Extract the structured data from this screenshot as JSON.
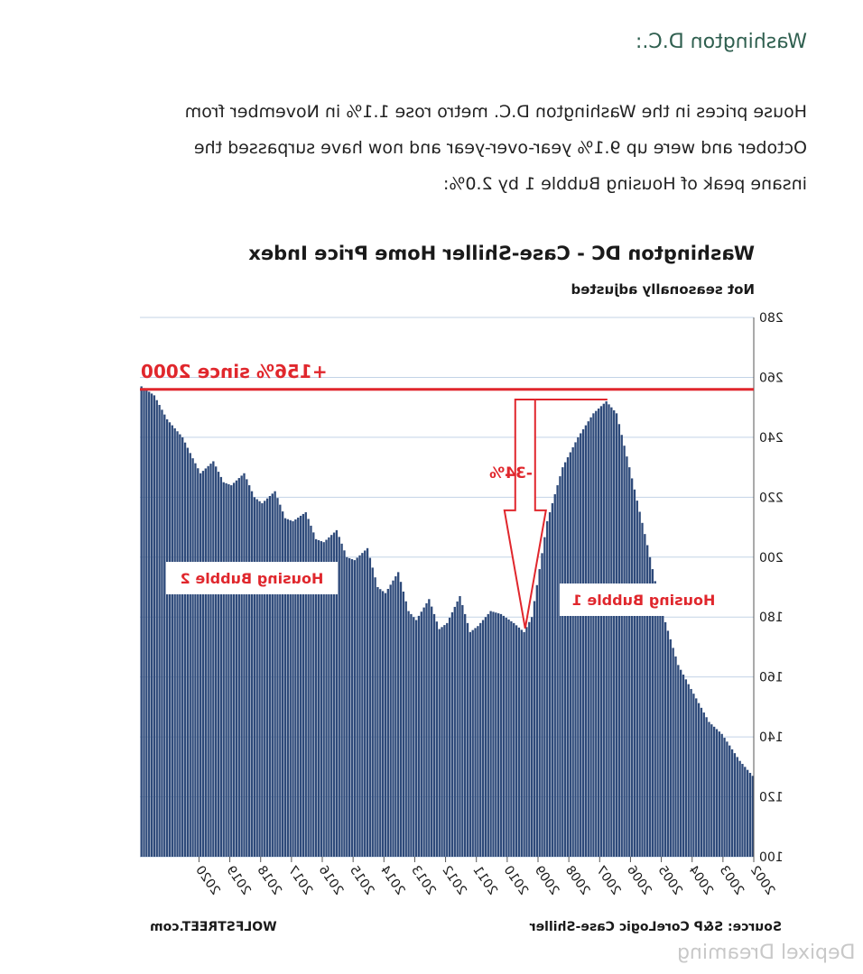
{
  "heading": "Washington D.C.:",
  "paragraph": [
    "House prices in the Washington D.C. metro rose 1.1% in November from",
    "October and were up 9.1% year-over-year and now have surpassed the",
    "insane peak of Housing Bubble 1 by 2.0%:"
  ],
  "watermark": "Depixel Dreaming",
  "colors": {
    "bars": "#2e4a7a",
    "accent": "#e0272d",
    "grid": "#c3d3e6",
    "heading": "#2f5f4f"
  },
  "chart_data": {
    "type": "bar",
    "title": "Washington DC - Case-Shiller Home Price Index",
    "subtitle": "Not seasonally adjusted",
    "source": "Source: S&P CoreLogic Case-Shiller",
    "brand": "WOLFSTREET.com",
    "ylim": [
      100,
      280
    ],
    "yticks": [
      100,
      120,
      140,
      160,
      180,
      200,
      220,
      240,
      260,
      280
    ],
    "xticks": [
      "2002",
      "2003",
      "2004",
      "2005",
      "2006",
      "2007",
      "2008",
      "2009",
      "2010",
      "2011",
      "2012",
      "2013",
      "2014",
      "2015",
      "2016",
      "2017",
      "2018",
      "2019",
      "2020"
    ],
    "start": "2002-01",
    "end": "2021-11",
    "grid": true,
    "monthly_index": [
      {
        "date": "2002-01",
        "value": 127
      },
      {
        "date": "2002-06",
        "value": 132
      },
      {
        "date": "2003-01",
        "value": 141
      },
      {
        "date": "2003-06",
        "value": 145
      },
      {
        "date": "2004-01",
        "value": 156
      },
      {
        "date": "2004-06",
        "value": 164
      },
      {
        "date": "2005-01",
        "value": 184
      },
      {
        "date": "2005-06",
        "value": 204
      },
      {
        "date": "2006-01",
        "value": 230
      },
      {
        "date": "2006-06",
        "value": 248
      },
      {
        "date": "2006-10",
        "value": 252
      },
      {
        "date": "2007-03",
        "value": 248
      },
      {
        "date": "2007-09",
        "value": 240
      },
      {
        "date": "2008-03",
        "value": 230
      },
      {
        "date": "2008-09",
        "value": 212
      },
      {
        "date": "2009-03",
        "value": 180
      },
      {
        "date": "2009-06",
        "value": 175
      },
      {
        "date": "2009-10",
        "value": 178
      },
      {
        "date": "2010-03",
        "value": 181
      },
      {
        "date": "2010-07",
        "value": 182
      },
      {
        "date": "2010-12",
        "value": 177
      },
      {
        "date": "2011-03",
        "value": 175
      },
      {
        "date": "2011-07",
        "value": 187
      },
      {
        "date": "2011-12",
        "value": 178
      },
      {
        "date": "2012-03",
        "value": 176
      },
      {
        "date": "2012-07",
        "value": 186
      },
      {
        "date": "2012-12",
        "value": 179
      },
      {
        "date": "2013-03",
        "value": 182
      },
      {
        "date": "2013-07",
        "value": 195
      },
      {
        "date": "2013-12",
        "value": 188
      },
      {
        "date": "2014-03",
        "value": 190
      },
      {
        "date": "2014-07",
        "value": 203
      },
      {
        "date": "2014-12",
        "value": 199
      },
      {
        "date": "2015-03",
        "value": 200
      },
      {
        "date": "2015-07",
        "value": 209
      },
      {
        "date": "2015-12",
        "value": 205
      },
      {
        "date": "2016-03",
        "value": 206
      },
      {
        "date": "2016-07",
        "value": 215
      },
      {
        "date": "2016-12",
        "value": 212
      },
      {
        "date": "2017-03",
        "value": 213
      },
      {
        "date": "2017-07",
        "value": 222
      },
      {
        "date": "2017-12",
        "value": 218
      },
      {
        "date": "2018-03",
        "value": 220
      },
      {
        "date": "2018-07",
        "value": 228
      },
      {
        "date": "2018-12",
        "value": 224
      },
      {
        "date": "2019-03",
        "value": 225
      },
      {
        "date": "2019-07",
        "value": 232
      },
      {
        "date": "2019-12",
        "value": 228
      },
      {
        "date": "2020-03",
        "value": 233
      },
      {
        "date": "2020-07",
        "value": 240
      },
      {
        "date": "2021-01",
        "value": 246
      },
      {
        "date": "2021-06",
        "value": 254
      },
      {
        "date": "2021-11",
        "value": 257
      }
    ],
    "annotations": {
      "since_2000": "+156% since 2000",
      "bubble1": "Housing Bubble 1",
      "bubble2": "Housing Bubble 2",
      "drop": "-34%",
      "reference_value": 256
    }
  }
}
